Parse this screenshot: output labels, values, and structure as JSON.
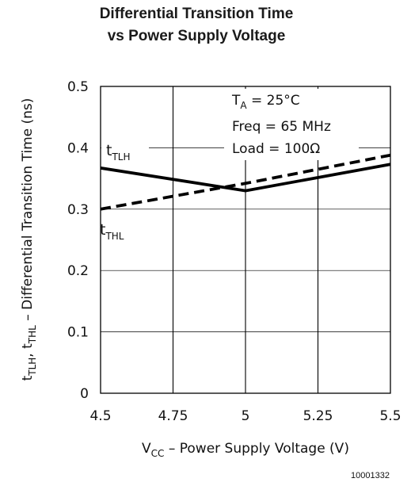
{
  "chart_data": {
    "type": "line",
    "title": [
      "Differential Transition Time",
      "vs Power Supply Voltage"
    ],
    "xlabel": {
      "main": "V",
      "sub": "CC",
      "rest": " – Power Supply Voltage (V)"
    },
    "ylabel": {
      "t1": "t",
      "s1": "TLH",
      "sep": ", ",
      "t2": "t",
      "s2": "THL",
      "rest": " – Differential Transition Time (ns)"
    },
    "xlim": [
      4.5,
      5.5
    ],
    "ylim": [
      0,
      0.5
    ],
    "x_ticks": [
      "4.5",
      "4.75",
      "5",
      "5.25",
      "5.5"
    ],
    "y_ticks": [
      "0",
      "0.1",
      "0.2",
      "0.3",
      "0.4",
      "0.5"
    ],
    "grid": true,
    "series": [
      {
        "name": "t_TLH",
        "label_main": "t",
        "label_sub": "TLH",
        "style": "solid",
        "color": "#000000",
        "x": [
          4.5,
          5.0,
          5.5
        ],
        "y": [
          0.367,
          0.33,
          0.373
        ]
      },
      {
        "name": "t_THL",
        "label_main": "t",
        "label_sub": "THL",
        "style": "dashed",
        "color": "#000000",
        "x": [
          4.5,
          5.0,
          5.5
        ],
        "y": [
          0.3,
          0.342,
          0.388
        ]
      }
    ],
    "annotations": {
      "ta_main": "T",
      "ta_sub": "A",
      "ta_rest": " = 25°C",
      "freq": "Freq = 65 MHz",
      "load": "Load = 100Ω"
    }
  },
  "figure_id": "10001332"
}
